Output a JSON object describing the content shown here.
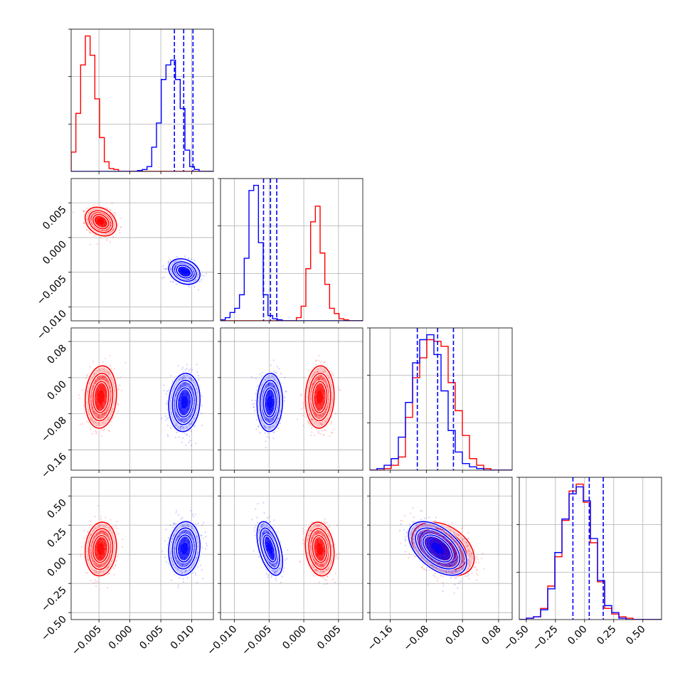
{
  "colors": {
    "red": "#ff0000",
    "blue": "#0000ff",
    "grid": "#b0b0b0",
    "axis": "#000000"
  },
  "chart_data": {
    "type": "corner",
    "grid": true,
    "params": [
      {
        "range": [
          -0.0095,
          0.0135
        ],
        "ticks": [
          -0.005,
          0.0,
          0.005,
          0.01
        ],
        "tick_labels": [
          "−0.005",
          "0.000",
          "0.005",
          "0.010"
        ]
      },
      {
        "range": [
          -0.012,
          0.0085
        ],
        "ticks": [
          -0.01,
          -0.005,
          0.0,
          0.005
        ],
        "tick_labels": [
          "−0.010",
          "−0.005",
          "0.000",
          "0.005"
        ]
      },
      {
        "range": [
          -0.205,
          0.11
        ],
        "ticks": [
          -0.16,
          -0.08,
          0.0,
          0.08
        ],
        "tick_labels": [
          "−0.16",
          "−0.08",
          "0.00",
          "0.08"
        ]
      },
      {
        "range": [
          -0.56,
          0.66
        ],
        "ticks": [
          -0.5,
          -0.25,
          0.0,
          0.25,
          0.5
        ],
        "tick_labels": [
          "−0.50",
          "−0.25",
          "0.00",
          "0.25",
          "0.50"
        ]
      }
    ],
    "series": [
      {
        "color": "red",
        "means": [
          -0.0047,
          0.0023,
          -0.043,
          0.045
        ],
        "sds": [
          0.0011,
          0.0009,
          0.03,
          0.1
        ]
      },
      {
        "color": "blue",
        "means": [
          0.0088,
          -0.0049,
          -0.055,
          0.05
        ],
        "sds": [
          0.0011,
          0.0008,
          0.028,
          0.1
        ]
      }
    ],
    "correlations": {
      "red": [
        [
          0,
          1,
          -0.25
        ],
        [
          0,
          2,
          0.1
        ],
        [
          0,
          3,
          0.1
        ],
        [
          1,
          2,
          0.05
        ],
        [
          1,
          3,
          -0.15
        ],
        [
          2,
          3,
          -0.35
        ]
      ],
      "blue": [
        [
          0,
          1,
          -0.25
        ],
        [
          0,
          2,
          0.1
        ],
        [
          0,
          3,
          0.1
        ],
        [
          1,
          2,
          0.05
        ],
        [
          1,
          3,
          -0.5
        ],
        [
          2,
          3,
          -0.5
        ]
      ]
    },
    "histograms": [
      {
        "bins": [
          -0.0095,
          0.0135,
          30
        ],
        "red": [
          0.2,
          0.6,
          1.1,
          1.4,
          1.2,
          0.75,
          0.35,
          0.1,
          0.03,
          0.02,
          0,
          0,
          0,
          0,
          0,
          0,
          0,
          0,
          0,
          0,
          0,
          0,
          0,
          0,
          0,
          0,
          0,
          0,
          0,
          0
        ],
        "blue": [
          0,
          0,
          0,
          0,
          0,
          0,
          0,
          0,
          0,
          0,
          0,
          0,
          0,
          0,
          0.01,
          0.02,
          0.05,
          0.25,
          0.5,
          0.95,
          1.1,
          1.15,
          0.95,
          0.65,
          0.22,
          0.05,
          0.02,
          0,
          0,
          0
        ],
        "quantiles_blue": [
          0.0072,
          0.0087,
          0.0102
        ]
      },
      {
        "bins": [
          -0.012,
          0.0085,
          30
        ],
        "red": [
          0,
          0,
          0,
          0,
          0,
          0,
          0,
          0,
          0,
          0,
          0,
          0,
          0,
          0,
          0,
          0,
          0.03,
          0.14,
          0.5,
          0.95,
          1.1,
          0.65,
          0.35,
          0.12,
          0.07,
          0.02,
          0.01,
          0,
          0,
          0
        ],
        "blue": [
          0.01,
          0.03,
          0.08,
          0.12,
          0.25,
          0.6,
          1.25,
          1.3,
          0.75,
          0.25,
          0.05,
          0.02,
          0.01,
          0,
          0,
          0,
          0,
          0,
          0,
          0,
          0,
          0,
          0,
          0,
          0,
          0,
          0,
          0,
          0,
          0
        ],
        "quantiles_blue": [
          -0.0058,
          -0.0048,
          -0.0039
        ]
      },
      {
        "bins": [
          -0.205,
          0.11,
          20
        ],
        "red": [
          0,
          0,
          0.01,
          0.03,
          0.08,
          0.32,
          0.56,
          0.68,
          0.79,
          0.78,
          0.75,
          0.53,
          0.36,
          0.21,
          0.07,
          0.03,
          0.01,
          0,
          0,
          0
        ],
        "blue": [
          0,
          0.01,
          0.03,
          0.07,
          0.2,
          0.41,
          0.65,
          0.79,
          0.82,
          0.7,
          0.48,
          0.24,
          0.11,
          0.04,
          0.02,
          0.01,
          0,
          0,
          0,
          0
        ],
        "quantiles_blue": [
          -0.1,
          -0.055,
          -0.02
        ]
      },
      {
        "bins": [
          -0.56,
          0.66,
          20
        ],
        "red": [
          0,
          0.01,
          0.02,
          0.08,
          0.24,
          0.45,
          0.71,
          0.92,
          0.97,
          0.84,
          0.55,
          0.27,
          0.08,
          0.04,
          0.02,
          0.01,
          0,
          0,
          0,
          0
        ],
        "blue": [
          0,
          0.01,
          0.02,
          0.07,
          0.22,
          0.48,
          0.72,
          0.9,
          0.95,
          0.85,
          0.58,
          0.28,
          0.1,
          0.05,
          0.01,
          0,
          0,
          0,
          0,
          0
        ],
        "quantiles_blue": [
          -0.1,
          0.04,
          0.16
        ]
      }
    ]
  }
}
